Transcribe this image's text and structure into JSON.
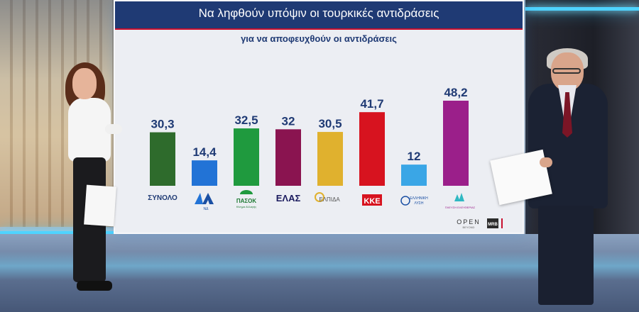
{
  "chart_data": {
    "type": "bar",
    "title": "Να ληφθούν υπόψιν οι τουρκικές αντιδράσεις",
    "subtitle": "για να αποφευχθούν οι αντιδράσεις",
    "categories": [
      "ΣΥΝΟΛΟ",
      "ΝΔ",
      "ΠΑΣΟΚ",
      "ΕΛΑΣ",
      "ΕΛΠΙΔΑ",
      "ΚΚΕ",
      "ΕΛΛΗΝΙΚΗ ΛΥΣΗ",
      "ΠΛΕΥΣΗ ΕΛΕΥΘΕΡΙΑΣ"
    ],
    "value_labels": [
      "30,3",
      "14,4",
      "32,5",
      "32",
      "30,5",
      "41,7",
      "12",
      "48,2"
    ],
    "values": [
      30.3,
      14.4,
      32.5,
      32,
      30.5,
      41.7,
      12,
      48.2
    ],
    "colors": [
      "#2e6b2c",
      "#2273d6",
      "#1f9a3e",
      "#8a1450",
      "#e0b12e",
      "#d7131f",
      "#3aa6e6",
      "#9b1f8a"
    ],
    "ylim": [
      0,
      55
    ],
    "grid": false,
    "legend": "none"
  },
  "logos": {
    "synolo": "ΣΥΝΟΛΟ",
    "nd": "ΝΔ",
    "pasok": "ΠΑΣΟΚ",
    "pasok_sub": "Κίνημα Αλλαγής",
    "elas": "ΕΛΑΣ",
    "elpida": "ΕΛΠΙΔΑ",
    "kke": "ΚΚΕ",
    "ellisi_line1": "ΕΛΛΗΝΙΚΗ",
    "ellisi_line2": "ΛΥΣΗ",
    "plefsi": "ΠΛΕΥΣΗ ΕΛΕΥΘΕΡΙΑΣ"
  },
  "branding": {
    "channel": "OPEN",
    "channel_sub": "BEYOND",
    "pollster": "MRB"
  }
}
